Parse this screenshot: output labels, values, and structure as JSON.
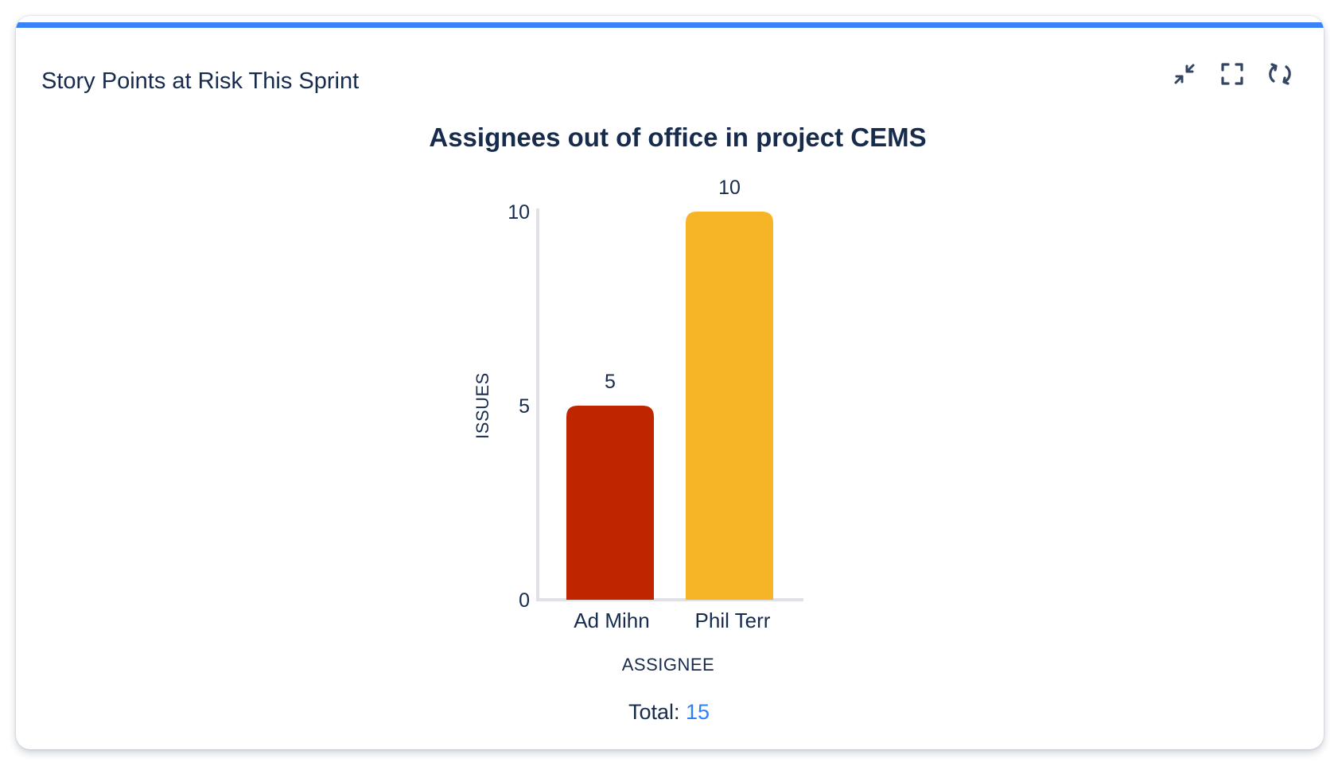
{
  "card": {
    "title": "Story Points at Risk This Sprint",
    "accent_color": "#3b82f6",
    "toolbar": [
      {
        "name": "minimize",
        "icon": "minimize-icon"
      },
      {
        "name": "fullscreen",
        "icon": "expand-icon"
      },
      {
        "name": "refresh",
        "icon": "refresh-icon"
      }
    ]
  },
  "chart_data": {
    "type": "bar",
    "title": "Assignees out of office in project CEMS",
    "categories": [
      "Ad Mihn",
      "Phil Terr"
    ],
    "values": [
      5,
      10
    ],
    "colors": [
      "#bf2600",
      "#f6b526"
    ],
    "xlabel": "ASSIGNEE",
    "ylabel": "ISSUES",
    "ylim": [
      0,
      10
    ],
    "yticks": [
      0,
      5,
      10
    ],
    "grid": false,
    "legend": "none"
  },
  "footer": {
    "total_label": "Total:",
    "total_value": "15"
  }
}
